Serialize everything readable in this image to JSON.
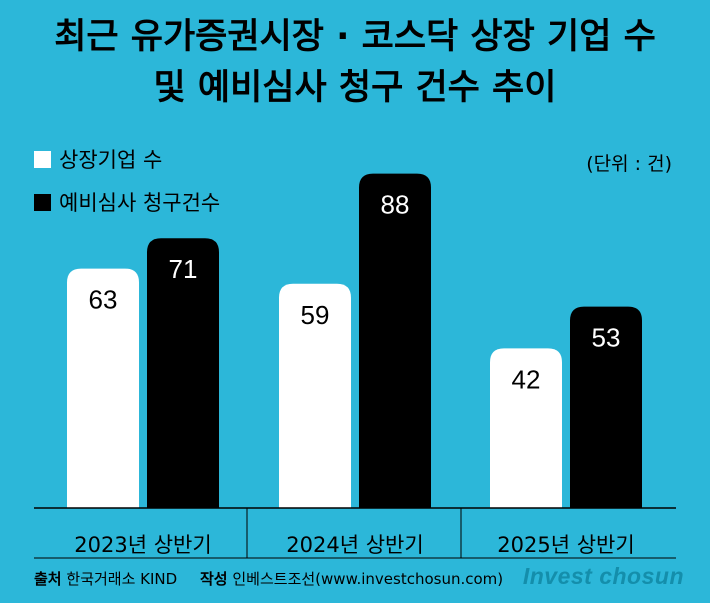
{
  "title_lines": [
    "최근 유가증권시장 · 코스닥 상장 기업 수",
    "및 예비심사 청구 건수 추이"
  ],
  "unit": "(단위 : 건)",
  "colors": {
    "background": "#2cb7d9",
    "listed_bar": "#ffffff",
    "review_bar": "#000000",
    "brand": "#148eab"
  },
  "chart_data": {
    "type": "bar",
    "title": "최근 유가증권시장 · 코스닥 상장 기업 수 및 예비심사 청구 건수 추이",
    "categories": [
      "2023년 상반기",
      "2024년 상반기",
      "2025년 상반기"
    ],
    "series": [
      {
        "name": "상장기업 수",
        "values": [
          63,
          59,
          42
        ],
        "color": "#ffffff",
        "label_color": "#000000"
      },
      {
        "name": "예비심사 청구건수",
        "values": [
          71,
          88,
          53
        ],
        "color": "#000000",
        "label_color": "#ffffff"
      }
    ],
    "unit": "건",
    "legend_position": "top-left",
    "grid": false
  },
  "footer": {
    "source_label": "출처",
    "source": "한국거래소 KIND",
    "author_label": "작성",
    "author": "인베스트조선(www.investchosun.com)"
  },
  "brand": "Invest chosun"
}
